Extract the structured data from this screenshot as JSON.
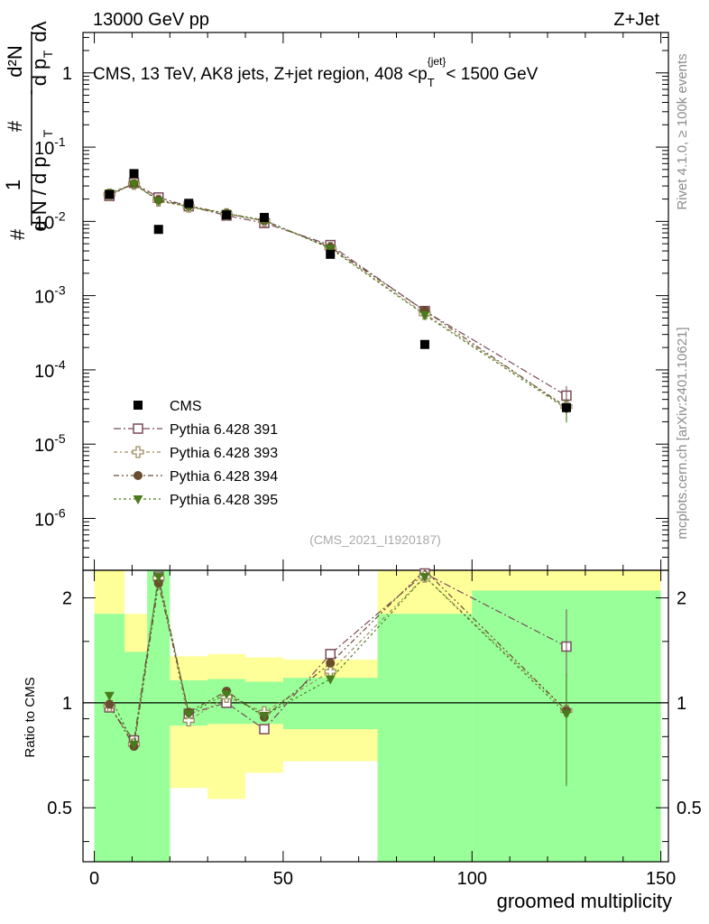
{
  "header": {
    "left": "13000 GeV pp",
    "right": "Z+Jet"
  },
  "side": {
    "rivet": "Rivet 4.1.0, ≥ 100k events",
    "mcplots": "mcplots.cern.ch [arXiv:2401.10621]"
  },
  "chart_data": {
    "type": "scatter",
    "title": "CMS, 13 TeV, AK8 jets, Z+jet region, 408 <p_T^{jet}< 1500 GeV",
    "title_parts": {
      "main": "CMS, 13 TeV, AK8 jets, Z+jet region, 408 <p",
      "sub": "T",
      "sup": "{jet}",
      "tail": "< 1500 GeV"
    },
    "watermark": "(CMS_2021_I1920187)",
    "xlabel": "groomed multiplicity",
    "ylabel_main": "1/N dN/dp_T d^2N/(dp_T dλ)",
    "ylabel_ratio": "Ratio to CMS",
    "xlim": [
      -3,
      152
    ],
    "ylim_main": [
      2e-07,
      3.5
    ],
    "ylim_ratio": [
      0.35,
      2.4
    ],
    "x_ticks": [
      "0",
      "50",
      "100",
      "150"
    ],
    "y_ticks_main": [
      "10^{-6}",
      "10^{-5}",
      "10^{-4}",
      "10^{-3}",
      "10^{-2}",
      "10^{-1}",
      "1"
    ],
    "y_ticks_ratio": [
      "0.5",
      "1",
      "2"
    ],
    "x": [
      4,
      10.5,
      17,
      25,
      35,
      45,
      62.5,
      87.5,
      125
    ],
    "x_err": [
      3.5,
      3.5,
      3,
      5,
      5,
      5,
      12.5,
      12.5,
      25
    ],
    "cms": [
      0.023,
      0.044,
      0.0078,
      0.0175,
      0.0122,
      0.0113,
      0.0036,
      0.00022,
      3.1e-05
    ],
    "ratio_band_inner": [
      {
        "x0": 0,
        "x1": 8,
        "lo": 0.0,
        "hi": 1.8
      },
      {
        "x0": 8,
        "x1": 14,
        "lo": 0.0,
        "hi": 1.4
      },
      {
        "x0": 14,
        "x1": 20,
        "lo": 0.0,
        "hi": 2.4
      },
      {
        "x0": 20,
        "x1": 30,
        "lo": 0.86,
        "hi": 1.16
      },
      {
        "x0": 30,
        "x1": 40,
        "lo": 0.87,
        "hi": 1.17
      },
      {
        "x0": 40,
        "x1": 50,
        "lo": 0.87,
        "hi": 1.15
      },
      {
        "x0": 50,
        "x1": 75,
        "lo": 0.84,
        "hi": 1.18
      },
      {
        "x0": 75,
        "x1": 100,
        "lo": 0.0,
        "hi": 1.8
      },
      {
        "x0": 100,
        "x1": 150,
        "lo": 0.0,
        "hi": 2.1
      }
    ],
    "ratio_band_outer": [
      {
        "x0": 0,
        "x1": 8,
        "lo": 0.0,
        "hi": 2.4
      },
      {
        "x0": 8,
        "x1": 14,
        "lo": 0.62,
        "hi": 1.8
      },
      {
        "x0": 14,
        "x1": 20,
        "lo": 0.0,
        "hi": 2.4
      },
      {
        "x0": 20,
        "x1": 30,
        "lo": 0.57,
        "hi": 1.36
      },
      {
        "x0": 30,
        "x1": 40,
        "lo": 0.53,
        "hi": 1.38
      },
      {
        "x0": 40,
        "x1": 50,
        "lo": 0.63,
        "hi": 1.35
      },
      {
        "x0": 50,
        "x1": 75,
        "lo": 0.68,
        "hi": 1.33
      },
      {
        "x0": 75,
        "x1": 100,
        "lo": 0.0,
        "hi": 2.4
      },
      {
        "x0": 100,
        "x1": 150,
        "lo": 0.0,
        "hi": 2.4
      }
    ],
    "series": [
      {
        "name": "Pythia 6.428 391",
        "marker": "open-square",
        "color": "#7b4a5c",
        "values": [
          0.022,
          0.033,
          0.021,
          0.016,
          0.012,
          0.0095,
          0.0048,
          0.00062,
          4.5e-05
        ],
        "ratio": [
          0.97,
          0.78,
          2.3,
          0.93,
          1.0,
          0.84,
          1.38,
          2.35,
          1.45
        ]
      },
      {
        "name": "Pythia 6.428 393",
        "marker": "open-cross",
        "color": "#9e8d5e",
        "values": [
          0.023,
          0.032,
          0.019,
          0.0158,
          0.0125,
          0.0102,
          0.0044,
          0.00057,
          3.2e-05
        ],
        "ratio": [
          0.98,
          0.76,
          2.28,
          0.89,
          1.04,
          0.94,
          1.23,
          2.3,
          0.95
        ]
      },
      {
        "name": "Pythia 6.428 394",
        "marker": "filled-circle",
        "color": "#6a4c2e",
        "values": [
          0.023,
          0.032,
          0.0195,
          0.0162,
          0.0128,
          0.0102,
          0.0045,
          0.00063,
          3.1e-05
        ],
        "ratio": [
          0.99,
          0.75,
          2.2,
          0.94,
          1.08,
          0.91,
          1.3,
          2.4,
          0.95
        ]
      },
      {
        "name": "Pythia 6.428 395",
        "marker": "filled-triangle",
        "color": "#4a7a1c",
        "values": [
          0.024,
          0.032,
          0.0188,
          0.0158,
          0.0128,
          0.0104,
          0.0043,
          0.00055,
          3e-05
        ],
        "ratio": [
          1.05,
          0.76,
          2.3,
          0.93,
          1.06,
          0.92,
          1.17,
          2.3,
          0.93
        ]
      }
    ],
    "legend": [
      "CMS",
      "Pythia 6.428 391",
      "Pythia 6.428 393",
      "Pythia 6.428 394",
      "Pythia 6.428 395"
    ]
  }
}
